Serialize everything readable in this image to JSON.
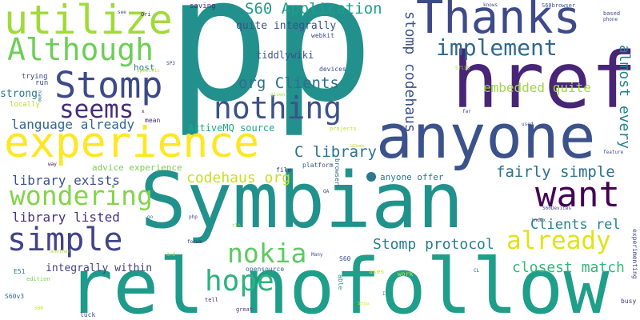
{
  "words": [
    {
      "id": "p-1",
      "text": "p",
      "color": "#22908c"
    },
    {
      "id": "p-2",
      "text": "p",
      "color": "#22908c"
    },
    {
      "id": "symbian",
      "text": "Symbian",
      "color": "#21918c"
    },
    {
      "id": "rel",
      "text": "rel",
      "color": "#1e9b8a"
    },
    {
      "id": "nofollow",
      "text": "nofollow",
      "color": "#1f9e89"
    },
    {
      "id": "href",
      "text": "href",
      "color": "#482576"
    },
    {
      "id": "anyone",
      "text": "anyone",
      "color": "#3b528b"
    },
    {
      "id": "thanks",
      "text": "Thanks",
      "color": "#3e4a89"
    },
    {
      "id": "experience",
      "text": "experience",
      "color": "#fde725"
    },
    {
      "id": "utilize",
      "text": "utilize",
      "color": "#a0da39"
    },
    {
      "id": "although",
      "text": "Although",
      "color": "#6ece58"
    },
    {
      "id": "stomp",
      "text": "Stomp",
      "color": "#3e4989"
    },
    {
      "id": "seems",
      "text": "seems",
      "color": "#472d7b"
    },
    {
      "id": "want",
      "text": "want",
      "color": "#440154"
    },
    {
      "id": "wondering",
      "text": "wondering",
      "color": "#84d44b"
    },
    {
      "id": "simple",
      "text": "simple",
      "color": "#414487"
    },
    {
      "id": "hope",
      "text": "hope",
      "color": "#2db27d"
    },
    {
      "id": "nokia",
      "text": "nokia",
      "color": "#5ec962"
    },
    {
      "id": "nothing",
      "text": "nothing",
      "color": "#3b528b"
    },
    {
      "id": "implement",
      "text": "implement",
      "color": "#30698e"
    },
    {
      "id": "already",
      "text": "already",
      "color": "#dfe318"
    },
    {
      "id": "s60-application",
      "text": "S60 Application",
      "color": "#1f9e89"
    },
    {
      "id": "org-clients",
      "text": "org Clients",
      "color": "#2d708e"
    },
    {
      "id": "stomp-codehaus",
      "text": "stomp codehaus",
      "color": "#3b528b"
    },
    {
      "id": "almost-every",
      "text": "almost every",
      "color": "#25848e"
    },
    {
      "id": "embedded-quite",
      "text": "embedded quite",
      "color": "#a0da39"
    },
    {
      "id": "language-already",
      "text": "language already",
      "color": "#31688e"
    },
    {
      "id": "library-exists",
      "text": "library exists",
      "color": "#3b528b"
    },
    {
      "id": "library-listed",
      "text": "library listed",
      "color": "#46337e"
    },
    {
      "id": "c-library",
      "text": "C library",
      "color": "#2c728e"
    },
    {
      "id": "codehaus-org",
      "text": "codehaus org",
      "color": "#c8e020"
    },
    {
      "id": "fairly-simple",
      "text": "fairly simple",
      "color": "#2d708e"
    },
    {
      "id": "clients-rel",
      "text": "Clients rel",
      "color": "#26828e"
    },
    {
      "id": "stomp-protocol",
      "text": "Stomp protocol",
      "color": "#277f8e"
    },
    {
      "id": "closest-match",
      "text": "closest match",
      "color": "#35b779"
    },
    {
      "id": "integrally-within",
      "text": "integrally within",
      "color": "#424086"
    },
    {
      "id": "quite-integrally",
      "text": "quite integrally",
      "color": "#3b528b"
    },
    {
      "id": "tiddlywiki",
      "text": "tiddlywiki",
      "color": "#3b528b"
    },
    {
      "id": "activemq-source",
      "text": "ActiveMQ source",
      "color": "#21a685"
    },
    {
      "id": "advice-experience",
      "text": "advice experience",
      "color": "#7ad151"
    },
    {
      "id": "anyone-offer",
      "text": "anyone offer",
      "color": "#2a788e"
    },
    {
      "id": "strong",
      "text": "strong",
      "color": "#2a788e"
    },
    {
      "id": "trying",
      "text": "trying",
      "color": "#414487"
    },
    {
      "id": "run",
      "text": "run",
      "color": "#3e4989"
    },
    {
      "id": "host",
      "text": "host",
      "color": "#2a788e"
    },
    {
      "id": "locally",
      "text": "locally",
      "color": "#b5de2b"
    },
    {
      "id": "saving",
      "text": "saving",
      "color": "#482878"
    },
    {
      "id": "webkit",
      "text": "webkit",
      "color": "#3e4989"
    },
    {
      "id": "devices",
      "text": "devices",
      "color": "#3e4989"
    },
    {
      "id": "specific",
      "text": "specific",
      "color": "#b5de2b"
    },
    {
      "id": "mean",
      "text": "mean",
      "color": "#482677"
    },
    {
      "id": "file",
      "text": "file",
      "color": "#46337e"
    },
    {
      "id": "platform",
      "text": "platform",
      "color": "#3b528b"
    },
    {
      "id": "projects",
      "text": "projects",
      "color": "#c2df23"
    },
    {
      "id": "browser",
      "text": "browser",
      "color": "#31688e"
    },
    {
      "id": "opensource",
      "text": "opensource",
      "color": "#31688e"
    },
    {
      "id": "e51",
      "text": "E51",
      "color": "#2c728e"
    },
    {
      "id": "edition",
      "text": "edition",
      "color": "#73d056"
    },
    {
      "id": "s60v3",
      "text": "S60v3",
      "color": "#31688e"
    },
    {
      "id": "luck",
      "text": "luck",
      "color": "#3e4989"
    },
    {
      "id": "tell",
      "text": "tell",
      "color": "#472d7b"
    },
    {
      "id": "great",
      "text": "great",
      "color": "#472d7b"
    },
    {
      "id": "able",
      "text": "able",
      "color": "#21918c"
    },
    {
      "id": "uses",
      "text": "uses",
      "color": "#d8e219"
    },
    {
      "id": "work",
      "text": "work",
      "color": "#d8e219"
    },
    {
      "id": "s60",
      "text": "S60",
      "color": "#3b528b"
    },
    {
      "id": "many",
      "text": "Many",
      "color": "#3b528b"
    },
    {
      "id": "busy",
      "text": "busy",
      "color": "#46337e"
    },
    {
      "id": "experimenting",
      "text": "experimenting",
      "color": "#3e4989"
    },
    {
      "id": "forum",
      "text": "forum",
      "color": "#46327e"
    },
    {
      "id": "php",
      "text": "php",
      "color": "#3e4989"
    },
    {
      "id": "go",
      "text": "go",
      "color": "#2a788e"
    },
    {
      "id": "way",
      "text": "way",
      "color": "#440154"
    },
    {
      "id": "another",
      "text": "another",
      "color": "#a5db36"
    },
    {
      "id": "x",
      "text": "x",
      "color": "#440154"
    },
    {
      "id": "see",
      "text": "see",
      "color": "#3e4989"
    },
    {
      "id": "ori",
      "text": "Ori",
      "color": "#472d7b"
    },
    {
      "id": "knows",
      "text": "knows",
      "color": "#3e4989"
    },
    {
      "id": "s60browser",
      "text": "S60browser",
      "color": "#3b528b"
    },
    {
      "id": "based",
      "text": "based",
      "color": "#3e4989"
    },
    {
      "id": "phone",
      "text": "phone",
      "color": "#3e4989"
    },
    {
      "id": "feature",
      "text": "feature",
      "color": "#3b528b"
    },
    {
      "id": "used",
      "text": "used",
      "color": "#3b528b"
    },
    {
      "id": "index",
      "text": "index",
      "color": "#3e4989"
    },
    {
      "id": "s60devices",
      "text": "S60Devices",
      "color": "#3e4989"
    },
    {
      "id": "given",
      "text": "given",
      "color": "#a0da39"
    },
    {
      "id": "far",
      "text": "far",
      "color": "#3e4989"
    },
    {
      "id": "name",
      "text": "name",
      "color": "#2a788e"
    },
    {
      "id": "qa",
      "text": "QA",
      "color": "#3b528b"
    },
    {
      "id": "ie",
      "text": "IE",
      "color": "#21918c"
    },
    {
      "id": "s60web",
      "text": "S60web",
      "color": "#c2df23"
    },
    {
      "id": "sflib",
      "text": "Sflib",
      "color": "#a0da39"
    },
    {
      "id": "tlh",
      "text": "tlh",
      "color": "#a0da39"
    },
    {
      "id": "3rd",
      "text": "3rd",
      "color": "#a0da39"
    },
    {
      "id": "sp3",
      "text": "SP3",
      "color": "#3e4989"
    },
    {
      "id": "sfbus",
      "text": "SFbus",
      "color": "#d8e219"
    },
    {
      "id": "cl",
      "text": "CL",
      "color": "#3b528b"
    },
    {
      "id": "s60-small",
      "text": "S60",
      "color": "#c8e020"
    }
  ]
}
